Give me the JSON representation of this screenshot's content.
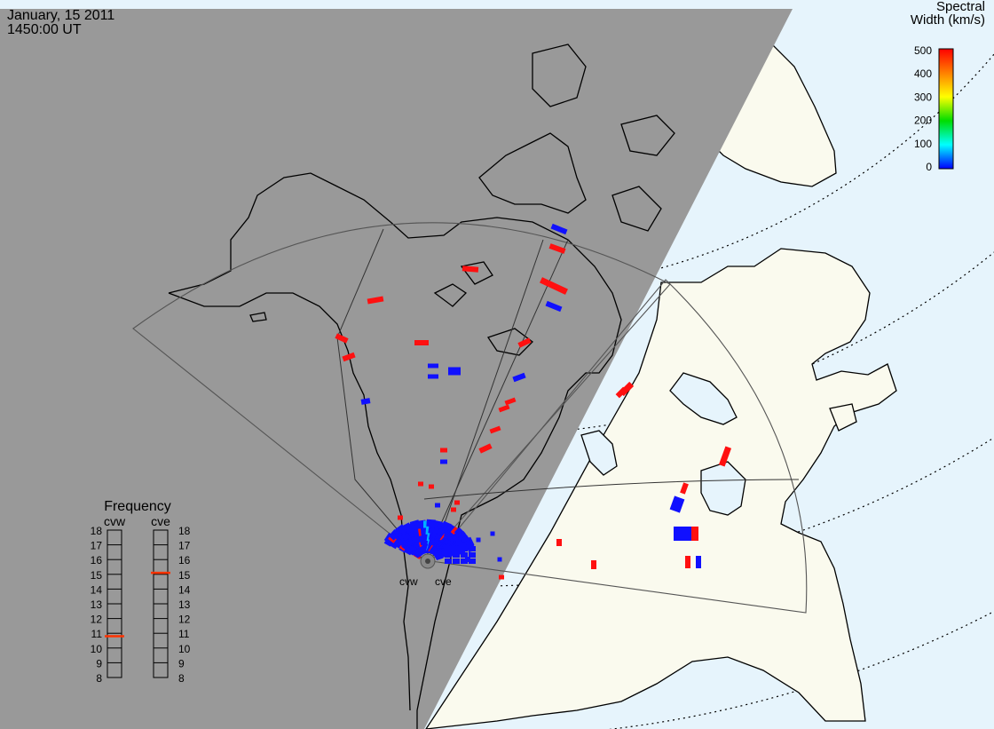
{
  "header": {
    "date": "January, 15 2011",
    "time": "1450:00 UT"
  },
  "colorbar": {
    "title_line1": "Spectral",
    "title_line2": "Width (km/s)",
    "ticks": [
      "500",
      "400",
      "300",
      "200",
      "100",
      "0"
    ],
    "colors": [
      "#ff0000",
      "#ff7f00",
      "#ffff00",
      "#00dd00",
      "#00ffff",
      "#0000ff"
    ]
  },
  "frequency_panel": {
    "title": "Frequency",
    "radars": [
      "cvw",
      "cve"
    ],
    "ticks": [
      "18",
      "17",
      "16",
      "15",
      "14",
      "13",
      "12",
      "11",
      "10",
      "9",
      "8"
    ],
    "cvw_value": 10.8,
    "cve_value": 15.1,
    "marker_color": "#ff3300"
  },
  "radar_sites": [
    "cvw",
    "cve"
  ],
  "map_colors": {
    "night_shade": "#999999",
    "land": "#fafaee",
    "ocean": "#e6f4fc",
    "coast": "#000000",
    "fov": "#555555"
  }
}
